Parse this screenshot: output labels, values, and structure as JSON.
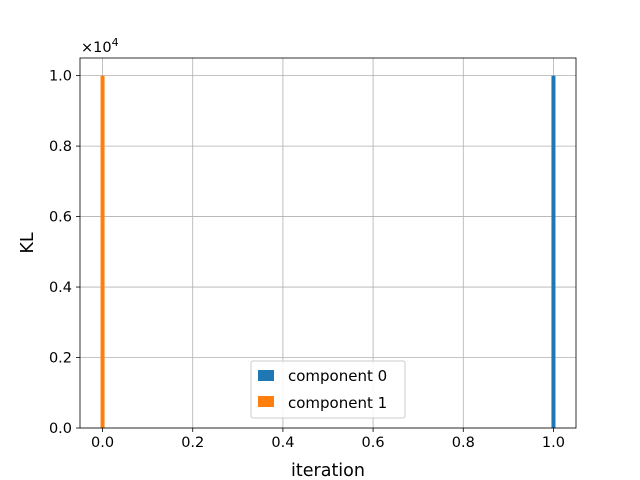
{
  "chart_data": {
    "type": "bar",
    "title": "",
    "xlabel": "iteration",
    "ylabel": "KL",
    "y_multiplier_label": "×10",
    "y_multiplier_exponent": "4",
    "xlim": [
      -0.05,
      1.05
    ],
    "ylim": [
      0,
      10500
    ],
    "x_ticks": [
      0.0,
      0.2,
      0.4,
      0.6,
      0.8,
      1.0
    ],
    "x_tick_labels": [
      "0.0",
      "0.2",
      "0.4",
      "0.6",
      "0.8",
      "1.0"
    ],
    "y_ticks": [
      0,
      2000,
      4000,
      6000,
      8000,
      10000
    ],
    "y_tick_labels": [
      "0.0",
      "0.2",
      "0.4",
      "0.6",
      "0.8",
      "1.0"
    ],
    "grid": true,
    "legend_position": "lower-center",
    "series": [
      {
        "name": "component 0",
        "color": "#1f77b4",
        "x": [
          1.0
        ],
        "values": [
          10000
        ]
      },
      {
        "name": "component 1",
        "color": "#ff7f0e",
        "x": [
          0.0
        ],
        "values": [
          10000
        ]
      }
    ]
  }
}
